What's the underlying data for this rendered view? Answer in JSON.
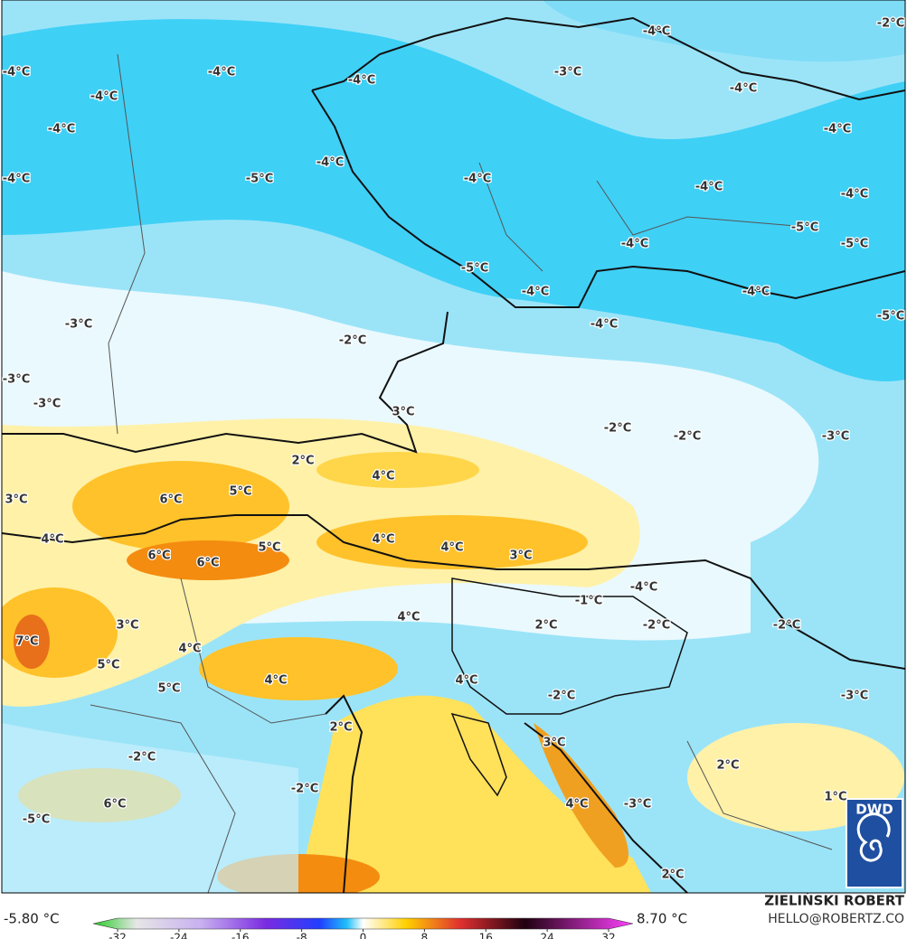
{
  "map": {
    "labels": [
      "-4°C",
      "-4°C",
      "-4°C",
      "-4°C",
      "-4°C",
      "-5°C",
      "-4°C",
      "-4°C",
      "-4°C",
      "-3°C",
      "-4°C",
      "-2°C",
      "-4°C",
      "-4°C",
      "-4°C",
      "-4°C",
      "-5°C",
      "-5°C",
      "-4°C",
      "-5°C",
      "-4°C",
      "-4°C",
      "-4°C",
      "-5°C",
      "-3°C",
      "-2°C",
      "-3°C",
      "-3°C",
      "3°C",
      "-2°C",
      "-2°C",
      "-3°C",
      "2°C",
      "4°C",
      "3°C",
      "6°C",
      "5°C",
      "4°C",
      "6°C",
      "6°C",
      "5°C",
      "4°C",
      "4°C",
      "3°C",
      "-1°C",
      "-4°C",
      "4°C",
      "2°C",
      "-2°C",
      "-2°C",
      "3°C",
      "7°C",
      "4°C",
      "5°C",
      "4°C",
      "5°C",
      "4°C",
      "-2°C",
      "-3°C",
      "2°C",
      "-2°C",
      "3°C",
      "2°C",
      "-2°C",
      "6°C",
      "1°C",
      "4°C",
      "-3°C",
      "-5°C",
      "2°C"
    ]
  },
  "colorbar": {
    "min_label": "-5.80 °C",
    "max_label": "8.70 °C",
    "lim": [
      -32,
      32
    ],
    "ticks": [
      -32,
      -24,
      -16,
      -8,
      0,
      8,
      16,
      24,
      32
    ]
  },
  "credit": {
    "author": "ZIELIŃSKI ROBERT",
    "email": "HELLO@ROBERTZ.CO"
  },
  "logo": "DWD"
}
